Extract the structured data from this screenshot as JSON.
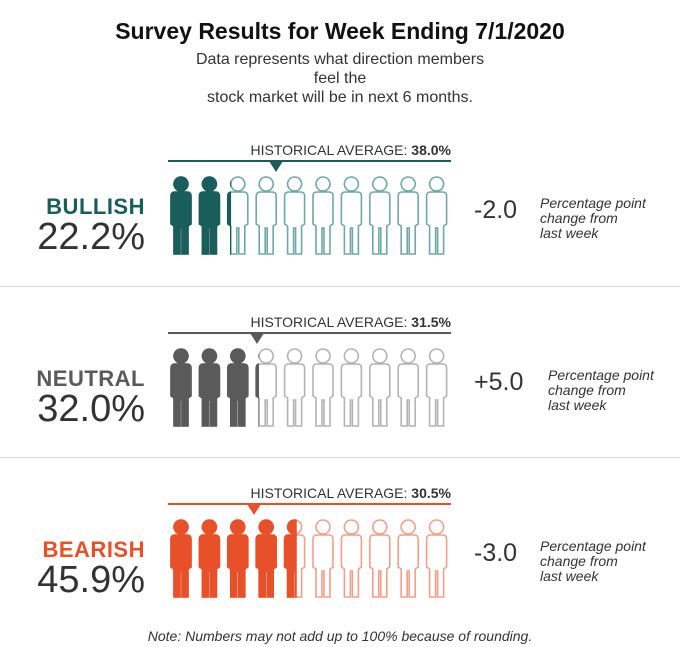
{
  "title": "Survey Results for Week Ending 7/1/2020",
  "subtitle_line1": "Data represents what direction members feel the",
  "subtitle_line2": "stock market will be in next 6 months.",
  "historical_prefix": "HISTORICAL AVERAGE: ",
  "change_note_line1": "Percentage point",
  "change_note_line2": "change from",
  "change_note_line3": "last week",
  "footnote": "Note: Numbers may not add up to 100% because of rounding.",
  "chart_data": {
    "type": "pictogram",
    "icons_per_row": 10,
    "unit": "%",
    "series": [
      {
        "name": "BULLISH",
        "value_label": "22.2%",
        "value": 22.2,
        "historical_label": "38.0%",
        "historical_average": 38.0,
        "change_label": "-2.0",
        "change": -2.0,
        "color": "#1a5e5c",
        "light_color": "#6fa8a6"
      },
      {
        "name": "NEUTRAL",
        "value_label": "32.0%",
        "value": 32.0,
        "historical_label": "31.5%",
        "historical_average": 31.5,
        "change_label": "+5.0",
        "change": 5.0,
        "color": "#5a5a5a",
        "light_color": "#b3b3b3"
      },
      {
        "name": "BEARISH",
        "value_label": "45.9%",
        "value": 45.9,
        "historical_label": "30.5%",
        "historical_average": 30.5,
        "change_label": "-3.0",
        "change": -3.0,
        "color": "#e8502a",
        "light_color": "#f0a08a"
      }
    ]
  }
}
